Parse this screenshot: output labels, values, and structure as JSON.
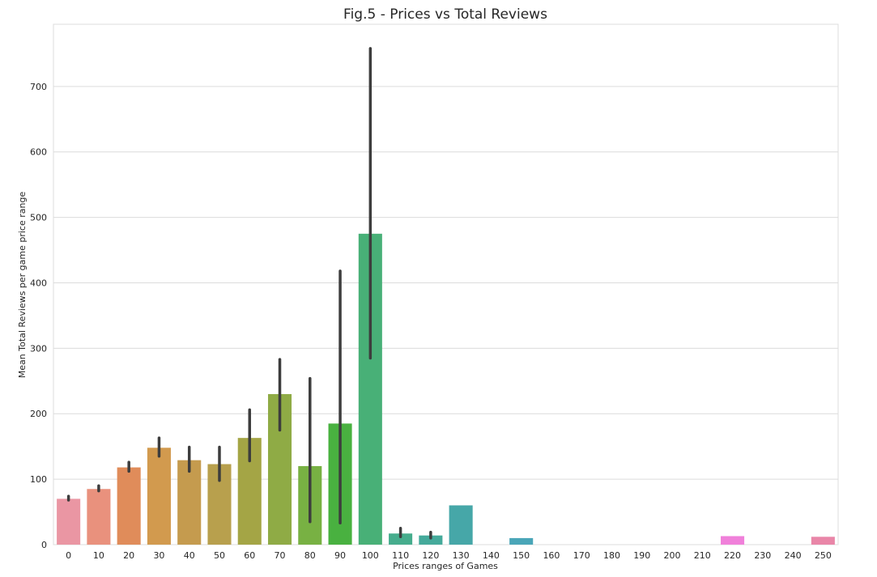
{
  "chart_data": {
    "type": "bar",
    "title": "Fig.5 - Prices vs Total Reviews",
    "xlabel": "Prices ranges of Games",
    "ylabel": "Mean Total Reviews per game price range",
    "ylim": [
      0,
      795
    ],
    "yticks": [
      0,
      100,
      200,
      300,
      400,
      500,
      600,
      700
    ],
    "grid": true,
    "categories": [
      "0",
      "10",
      "20",
      "30",
      "40",
      "50",
      "60",
      "70",
      "80",
      "90",
      "100",
      "110",
      "120",
      "130",
      "140",
      "150",
      "160",
      "170",
      "180",
      "190",
      "200",
      "210",
      "220",
      "230",
      "240",
      "250"
    ],
    "values": [
      70,
      85,
      118,
      148,
      129,
      123,
      163,
      230,
      120,
      185,
      475,
      17,
      14,
      60,
      0,
      10,
      0,
      0,
      0,
      0,
      0,
      0,
      13,
      0,
      0,
      12
    ],
    "error_low": [
      68,
      82,
      112,
      135,
      112,
      98,
      128,
      175,
      35,
      33,
      285,
      12,
      10,
      null,
      null,
      null,
      null,
      null,
      null,
      null,
      null,
      null,
      null,
      null,
      null,
      null
    ],
    "error_high": [
      74,
      90,
      126,
      163,
      149,
      149,
      206,
      283,
      254,
      418,
      758,
      25,
      19,
      null,
      null,
      null,
      null,
      null,
      null,
      null,
      null,
      null,
      null,
      null,
      null,
      null
    ],
    "colors": [
      "#ea96a3",
      "#e9917d",
      "#e08c5a",
      "#d29a4e",
      "#c59b4e",
      "#b8a04d",
      "#a4a545",
      "#8fab45",
      "#78b143",
      "#49b140",
      "#48b077",
      "#46ad8d",
      "#45aa9b",
      "#46a7a8",
      "#4aa6b8",
      "#4aa6b8",
      "#5aa2c8",
      "#7a9fd6",
      "#9a98de",
      "#b68de4",
      "#ce84e0",
      "#e47fd8",
      "#f080da",
      "#f080c0",
      "#f083b0",
      "#e986a8"
    ]
  }
}
